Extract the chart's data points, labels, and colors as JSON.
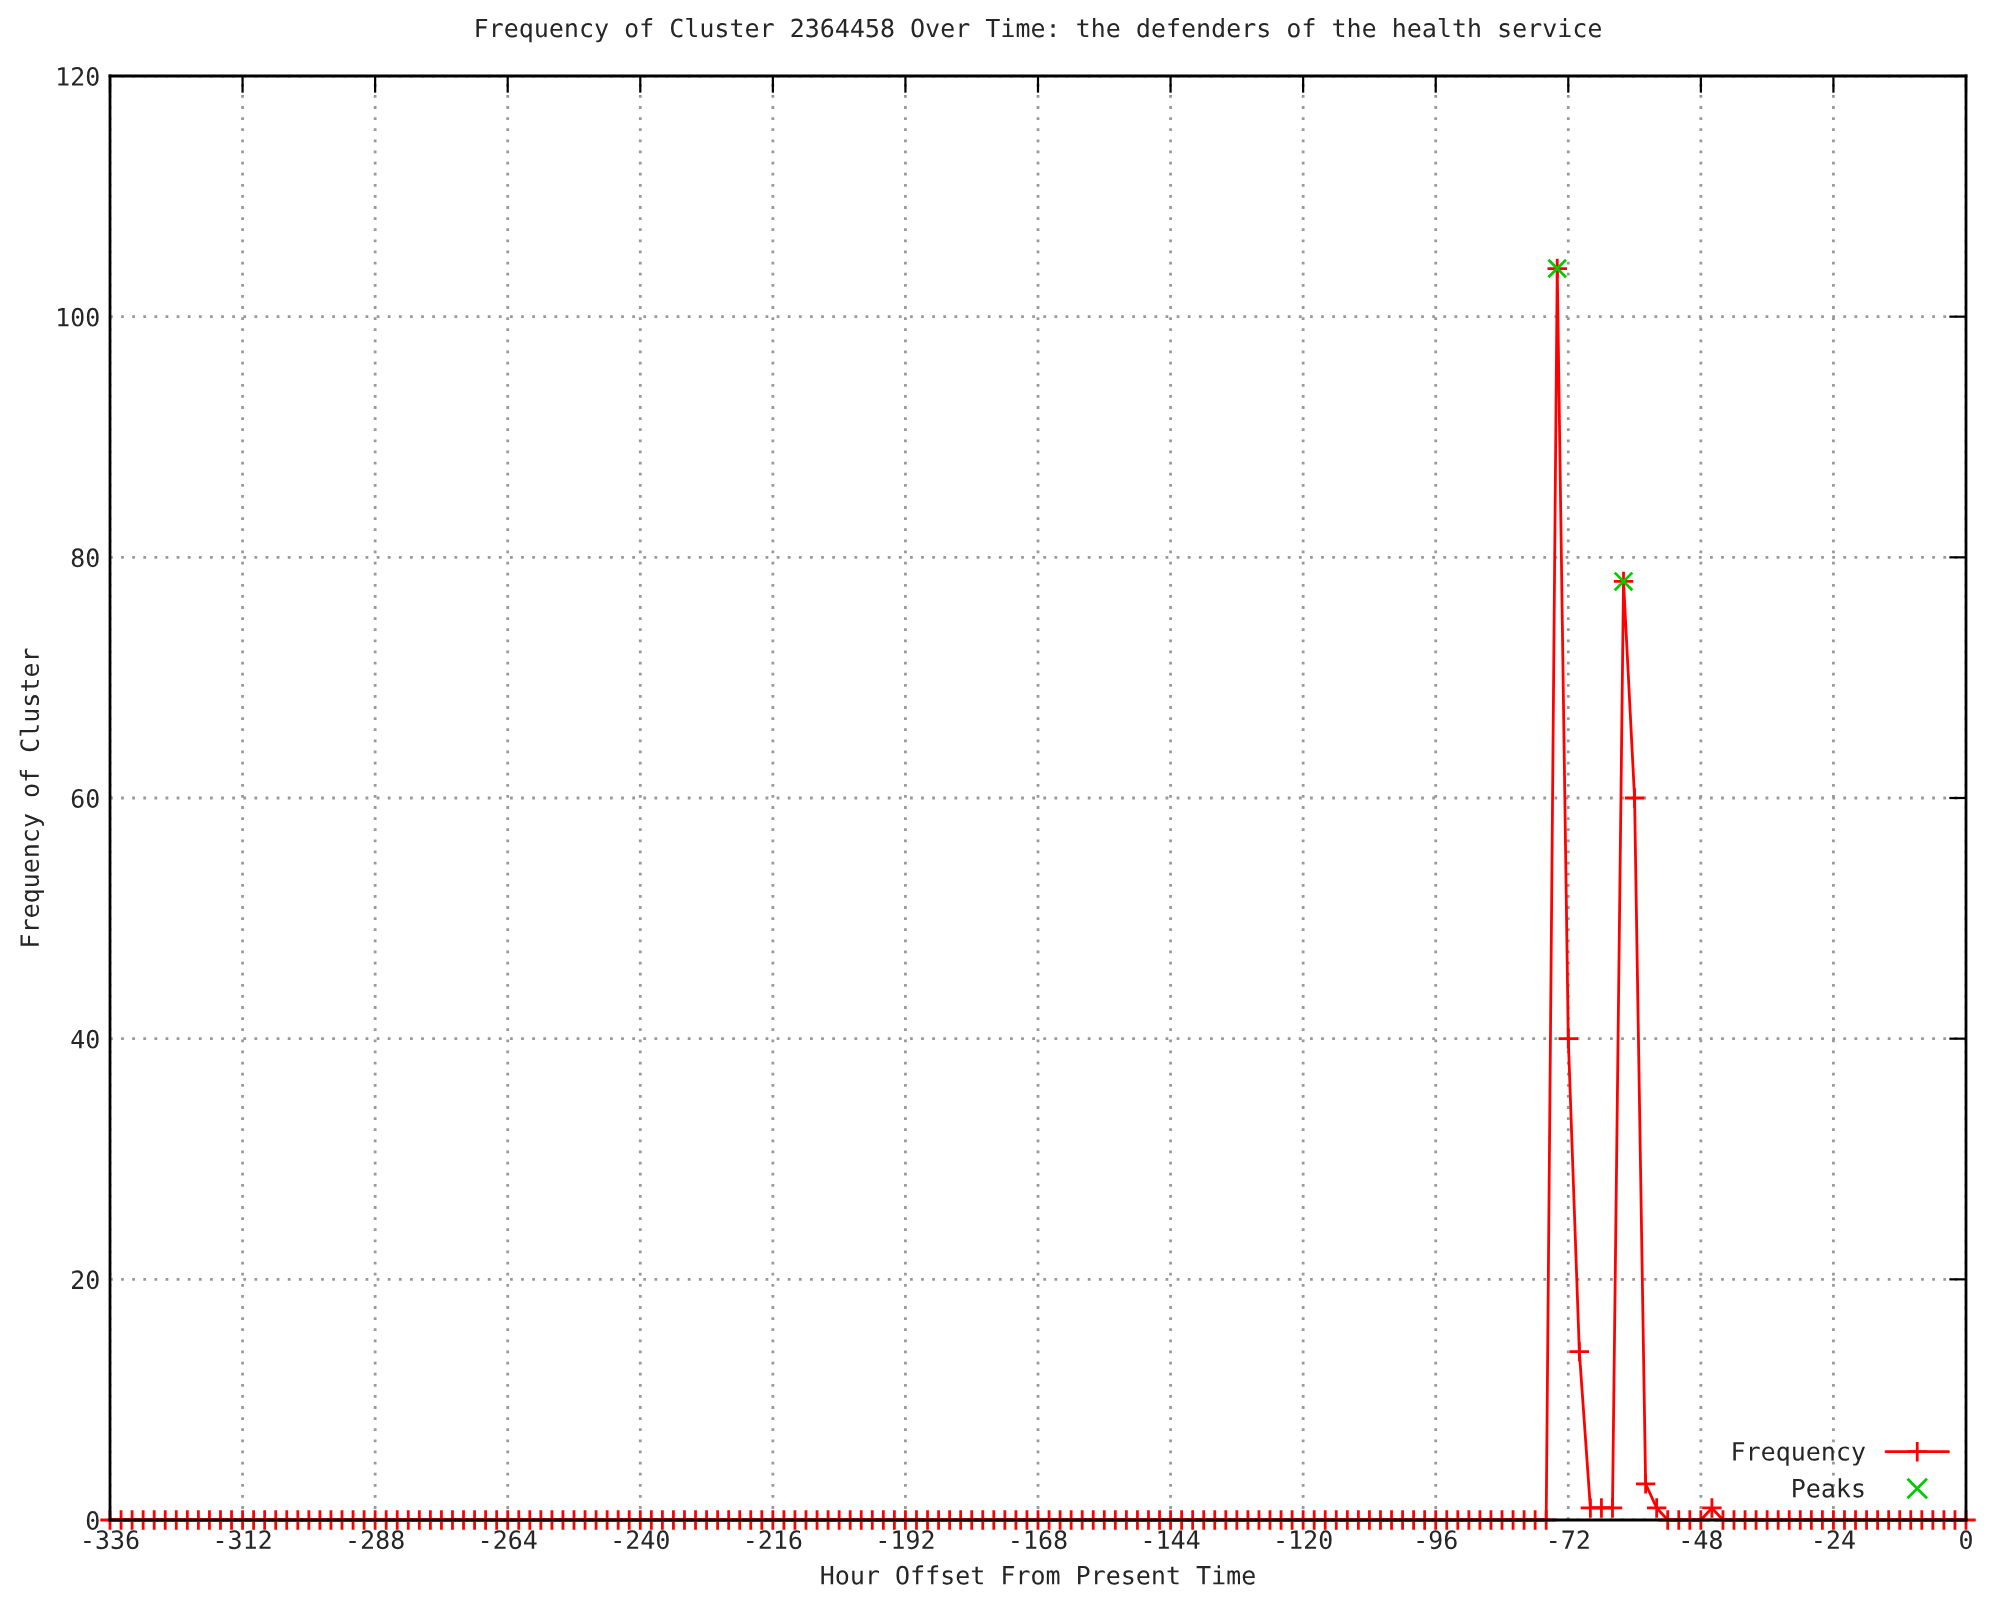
{
  "chart_data": {
    "type": "line",
    "title": "Frequency of Cluster 2364458 Over Time: the defenders of the health service",
    "xlabel": "Hour Offset From Present Time",
    "ylabel": "Frequency of Cluster",
    "xlim": [
      -336,
      0
    ],
    "xticks": [
      -336,
      -312,
      -288,
      -264,
      -240,
      -216,
      -192,
      -168,
      -144,
      -120,
      -96,
      -72,
      -48,
      -24,
      0
    ],
    "ylim": [
      0,
      120
    ],
    "yticks": [
      0,
      20,
      40,
      60,
      80,
      100,
      120
    ],
    "grid": true,
    "legend": "bottom right",
    "series": [
      {
        "name": "Frequency",
        "color": "#ff0000",
        "marker": "cross",
        "line_style": "solid",
        "x": [
          -336,
          -334,
          -332,
          -330,
          -328,
          -326,
          -324,
          -322,
          -320,
          -318,
          -316,
          -314,
          -312,
          -310,
          -308,
          -306,
          -304,
          -302,
          -300,
          -298,
          -296,
          -294,
          -292,
          -290,
          -288,
          -286,
          -284,
          -282,
          -280,
          -278,
          -276,
          -274,
          -272,
          -270,
          -268,
          -266,
          -264,
          -262,
          -260,
          -258,
          -256,
          -254,
          -252,
          -250,
          -248,
          -246,
          -244,
          -242,
          -240,
          -238,
          -236,
          -234,
          -232,
          -230,
          -228,
          -226,
          -224,
          -222,
          -220,
          -218,
          -216,
          -214,
          -212,
          -210,
          -208,
          -206,
          -204,
          -202,
          -200,
          -198,
          -196,
          -194,
          -192,
          -190,
          -188,
          -186,
          -184,
          -182,
          -180,
          -178,
          -176,
          -174,
          -172,
          -170,
          -168,
          -166,
          -164,
          -162,
          -160,
          -158,
          -156,
          -154,
          -152,
          -150,
          -148,
          -146,
          -144,
          -142,
          -140,
          -138,
          -136,
          -134,
          -132,
          -130,
          -128,
          -126,
          -124,
          -122,
          -120,
          -118,
          -116,
          -114,
          -112,
          -110,
          -108,
          -106,
          -104,
          -102,
          -100,
          -98,
          -96,
          -94,
          -92,
          -90,
          -88,
          -86,
          -84,
          -82,
          -80,
          -78,
          -76,
          -74,
          -72,
          -70,
          -68,
          -66,
          -64,
          -62,
          -60,
          -58,
          -56,
          -54,
          -52,
          -50,
          -48,
          -46,
          -44,
          -42,
          -40,
          -38,
          -36,
          -34,
          -32,
          -30,
          -28,
          -26,
          -24,
          -22,
          -20,
          -18,
          -16,
          -14,
          -12,
          -10,
          -8,
          -6,
          -4,
          -2,
          0
        ],
        "values": [
          0,
          0,
          0,
          0,
          0,
          0,
          0,
          0,
          0,
          0,
          0,
          0,
          0,
          0,
          0,
          0,
          0,
          0,
          0,
          0,
          0,
          0,
          0,
          0,
          0,
          0,
          0,
          0,
          0,
          0,
          0,
          0,
          0,
          0,
          0,
          0,
          0,
          0,
          0,
          0,
          0,
          0,
          0,
          0,
          0,
          0,
          0,
          0,
          0,
          0,
          0,
          0,
          0,
          0,
          0,
          0,
          0,
          0,
          0,
          0,
          0,
          0,
          0,
          0,
          0,
          0,
          0,
          0,
          0,
          0,
          0,
          0,
          0,
          0,
          0,
          0,
          0,
          0,
          0,
          0,
          0,
          0,
          0,
          0,
          0,
          0,
          0,
          0,
          0,
          0,
          0,
          0,
          0,
          0,
          0,
          0,
          0,
          0,
          0,
          0,
          0,
          0,
          0,
          0,
          0,
          0,
          0,
          0,
          0,
          0,
          0,
          0,
          0,
          0,
          0,
          0,
          0,
          0,
          0,
          0,
          0,
          0,
          0,
          0,
          0,
          0,
          0,
          0,
          0,
          0,
          0,
          104,
          40,
          14,
          1,
          1,
          1,
          78,
          60,
          3,
          1,
          0,
          0,
          0,
          0,
          1,
          0,
          0,
          0,
          0,
          0,
          0,
          0,
          0,
          0,
          0,
          0,
          0,
          0,
          0,
          0,
          0,
          0,
          0,
          0,
          0,
          0,
          0,
          0
        ]
      },
      {
        "name": "Peaks",
        "type": "scatter",
        "color": "#00cc00",
        "marker": "cross",
        "x": [
          -74,
          -62
        ],
        "values": [
          104,
          78
        ]
      }
    ]
  }
}
